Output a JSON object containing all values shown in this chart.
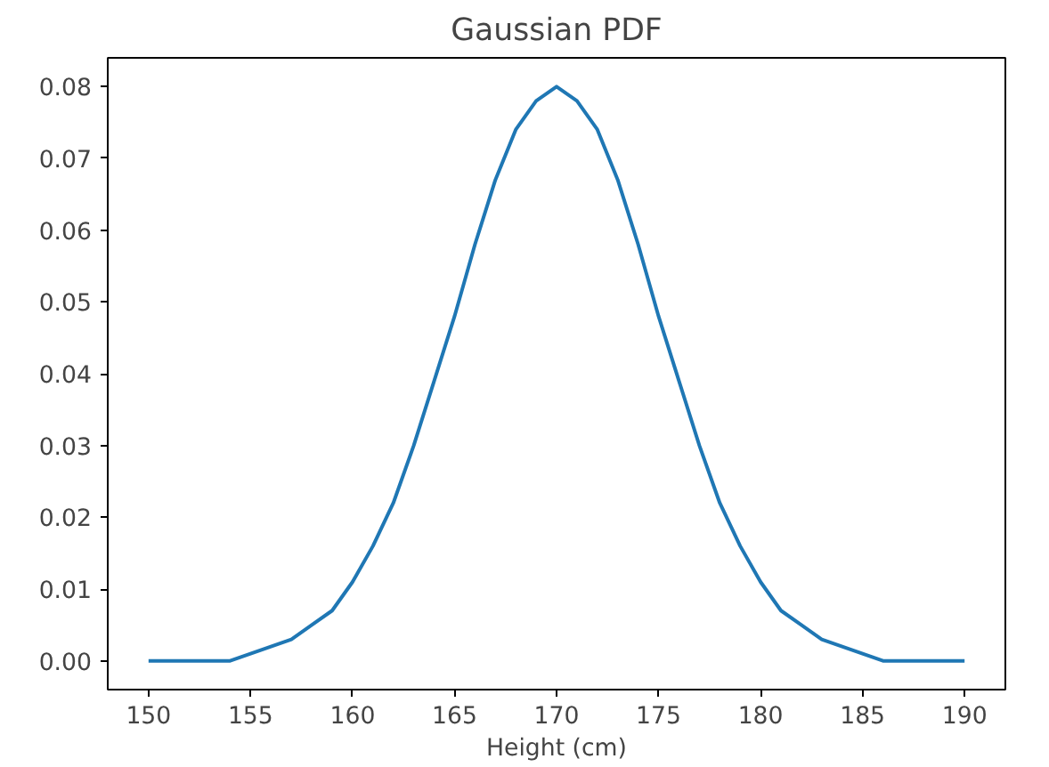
{
  "chart_data": {
    "type": "line",
    "title": "Gaussian PDF",
    "xlabel": "Height (cm)",
    "x": [
      150,
      151,
      152,
      153,
      154,
      155,
      156,
      157,
      158,
      159,
      160,
      161,
      162,
      163,
      164,
      165,
      166,
      167,
      168,
      169,
      170,
      171,
      172,
      173,
      174,
      175,
      176,
      177,
      178,
      179,
      180,
      181,
      182,
      183,
      184,
      185,
      186,
      187,
      188,
      189,
      190
    ],
    "series": [
      {
        "color": "#1f77b4",
        "values": [
          0.0,
          0.0,
          0.0,
          0.0,
          0.0,
          0.001,
          0.002,
          0.003,
          0.005,
          0.007,
          0.011,
          0.016,
          0.022,
          0.03,
          0.039,
          0.048,
          0.058,
          0.067,
          0.074,
          0.078,
          0.08,
          0.078,
          0.074,
          0.067,
          0.058,
          0.048,
          0.039,
          0.03,
          0.022,
          0.016,
          0.011,
          0.007,
          0.005,
          0.003,
          0.002,
          0.001,
          0.0,
          0.0,
          0.0,
          0.0,
          0.0
        ]
      }
    ],
    "xlim": [
      148,
      192
    ],
    "ylim": [
      -0.004,
      0.084
    ],
    "xticks": [
      150,
      155,
      160,
      165,
      170,
      175,
      180,
      185,
      190
    ],
    "yticks": [
      {
        "value": 0,
        "label": "0.00"
      },
      {
        "value": 0.01,
        "label": "0.01"
      },
      {
        "value": 0.02,
        "label": "0.02"
      },
      {
        "value": 0.03,
        "label": "0.03"
      },
      {
        "value": 0.04,
        "label": "0.04"
      },
      {
        "value": 0.05,
        "label": "0.05"
      },
      {
        "value": 0.06,
        "label": "0.06"
      },
      {
        "value": 0.07,
        "label": "0.07"
      },
      {
        "value": 0.08,
        "label": "0.08"
      }
    ],
    "grid": false,
    "marker": "none",
    "line_style": "solid"
  }
}
